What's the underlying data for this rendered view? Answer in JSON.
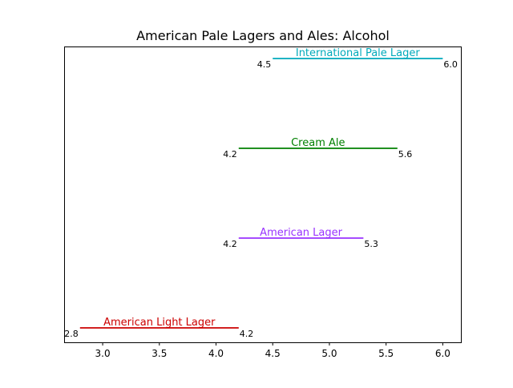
{
  "chart_data": {
    "type": "range",
    "title": "American Pale Lagers and Ales: Alcohol",
    "xlabel": "",
    "ylabel": "",
    "xlim": [
      2.66,
      6.16
    ],
    "x_ticks": [
      "3.0",
      "3.5",
      "4.0",
      "4.5",
      "5.0",
      "5.5",
      "6.0"
    ],
    "x_tick_values": [
      3.0,
      3.5,
      4.0,
      4.5,
      5.0,
      5.5,
      6.0
    ],
    "grid": false,
    "series": [
      {
        "name": "American Light Lager",
        "min": 2.8,
        "max": 4.2,
        "min_label": "2.8",
        "max_label": "4.2",
        "color": "#cc0000"
      },
      {
        "name": "American Lager",
        "min": 4.2,
        "max": 5.3,
        "min_label": "4.2",
        "max_label": "5.3",
        "color": "#9933ff"
      },
      {
        "name": "Cream Ale",
        "min": 4.2,
        "max": 5.6,
        "min_label": "4.2",
        "max_label": "5.6",
        "color": "#008000"
      },
      {
        "name": "International Pale Lager",
        "min": 4.5,
        "max": 6.0,
        "min_label": "4.5",
        "max_label": "6.0",
        "color": "#00aabb"
      }
    ]
  }
}
